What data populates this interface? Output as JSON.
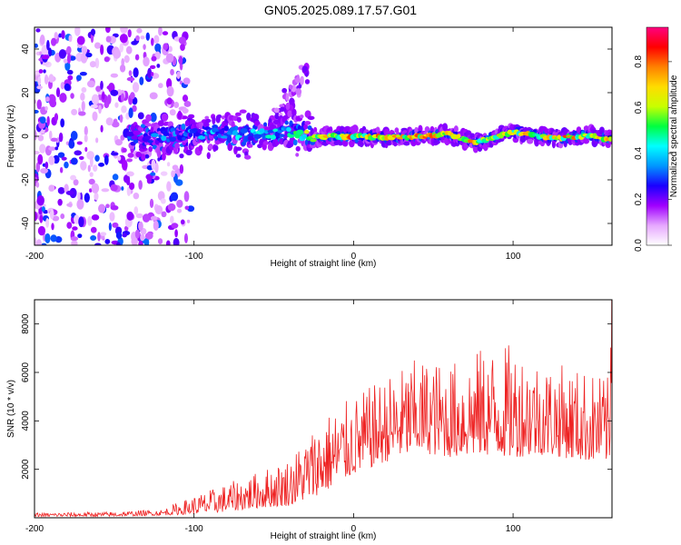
{
  "title": "GN05.2025.089.17.57.G01",
  "chart_data": [
    {
      "type": "heatmap",
      "xlabel": "Height of straight line (km)",
      "ylabel": "Frequency (Hz)",
      "xlim": [
        -200,
        162
      ],
      "ylim": [
        -50,
        50
      ],
      "x_ticks": [
        -200,
        -100,
        0,
        100
      ],
      "y_ticks": [
        -40,
        -20,
        0,
        20,
        40
      ],
      "colorbar": {
        "label": "Normalized spectral amplitude",
        "range": [
          0,
          0.95
        ],
        "ticks": [
          0.0,
          0.2,
          0.4,
          0.6,
          0.8
        ],
        "colors": [
          "#ffffff",
          "#e6a8ff",
          "#a000ff",
          "#1a00ff",
          "#0096ff",
          "#00ffff",
          "#00ff40",
          "#c8ff00",
          "#ffdc00",
          "#ff8000",
          "#ff0000",
          "#ff0080"
        ]
      },
      "ridge": [
        {
          "x": -140,
          "f": 0.5,
          "amp": 0.3
        },
        {
          "x": -120,
          "f": -1.0,
          "amp": 0.38
        },
        {
          "x": -100,
          "f": 1.5,
          "amp": 0.42
        },
        {
          "x": -80,
          "f": 1.0,
          "amp": 0.45
        },
        {
          "x": -60,
          "f": 0.5,
          "amp": 0.45
        },
        {
          "x": -40,
          "f": 2.0,
          "amp": 0.5
        },
        {
          "x": -25,
          "f": 0.0,
          "amp": 0.8
        },
        {
          "x": 0,
          "f": 0.0,
          "amp": 0.85
        },
        {
          "x": 30,
          "f": -0.5,
          "amp": 0.85
        },
        {
          "x": 60,
          "f": 1.0,
          "amp": 0.8
        },
        {
          "x": 75,
          "f": -3.0,
          "amp": 0.8
        },
        {
          "x": 100,
          "f": 2.0,
          "amp": 0.75
        },
        {
          "x": 125,
          "f": -1.0,
          "amp": 0.85
        },
        {
          "x": 150,
          "f": 0.5,
          "amp": 0.8
        },
        {
          "x": 162,
          "f": -2.0,
          "amp": 0.75
        }
      ],
      "noise_region_x": [
        -200,
        -110
      ],
      "upper_streak": {
        "x": [
          -50,
          -30
        ],
        "f": [
          5,
          30
        ]
      }
    },
    {
      "type": "line",
      "xlabel": "Height of straight line (km)",
      "ylabel": "SNR (10 * v/v)",
      "xlim": [
        -200,
        162
      ],
      "ylim": [
        0,
        9000
      ],
      "x_ticks": [
        -200,
        -100,
        0,
        100
      ],
      "y_ticks": [
        2000,
        4000,
        6000,
        8000
      ],
      "series": [
        {
          "name": "SNR",
          "color": "#ee2222",
          "envelope_x": [
            -200,
            -150,
            -120,
            -100,
            -80,
            -60,
            -40,
            -20,
            0,
            20,
            40,
            60,
            80,
            100,
            120,
            140,
            160,
            162
          ],
          "envelope_low": [
            50,
            60,
            100,
            150,
            250,
            400,
            500,
            1000,
            1800,
            2300,
            2700,
            2500,
            2600,
            2500,
            2600,
            2400,
            2300,
            2200
          ],
          "envelope_high": [
            200,
            250,
            350,
            900,
            1400,
            1900,
            2500,
            4200,
            5000,
            5800,
            6600,
            6400,
            7000,
            7200,
            6500,
            6200,
            5800,
            8800
          ]
        }
      ]
    }
  ]
}
